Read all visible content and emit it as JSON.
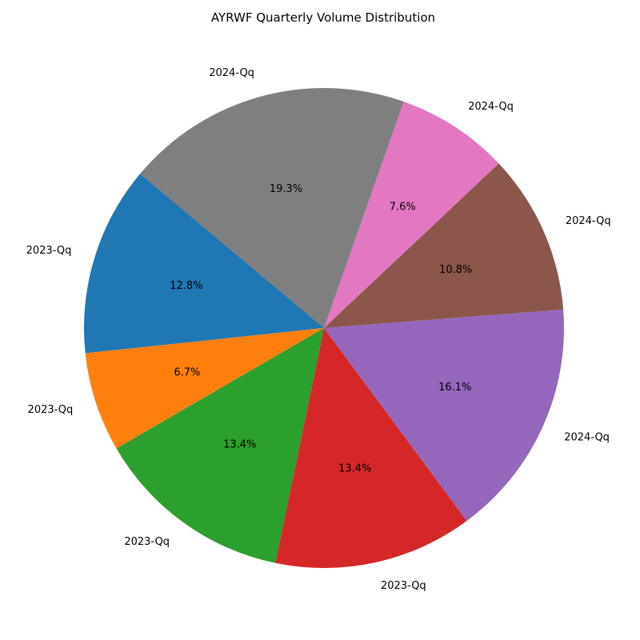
{
  "chart_data": {
    "type": "pie",
    "title": "AYRWF Quarterly Volume Distribution",
    "labels": [
      "2023-Qq",
      "2023-Qq",
      "2023-Qq",
      "2023-Qq",
      "2024-Qq",
      "2024-Qq",
      "2024-Qq",
      "2024-Qq"
    ],
    "values": [
      12.8,
      6.7,
      13.4,
      13.4,
      16.1,
      10.8,
      7.6,
      19.3
    ],
    "percent_labels": [
      "12.8%",
      "6.7%",
      "13.4%",
      "13.4%",
      "16.1%",
      "10.8%",
      "7.6%",
      "19.3%"
    ],
    "colors": [
      "#1f77b4",
      "#ff7f0e",
      "#2ca02c",
      "#d62728",
      "#9467bd",
      "#8c564b",
      "#e377c2",
      "#7f7f7f"
    ],
    "start_angle_deg": 140,
    "direction": "counterclockwise",
    "legend": "none"
  }
}
